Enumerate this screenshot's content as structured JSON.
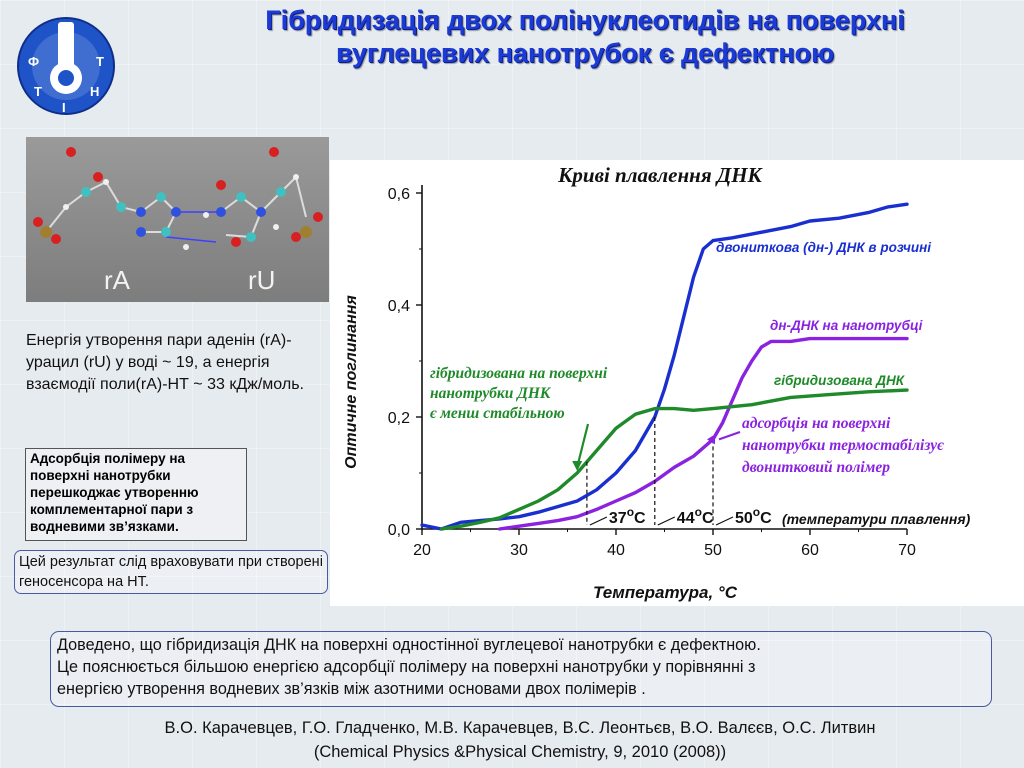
{
  "slide": {
    "title_line1": "Гібридизація двох полінуклеотидів на поверхні",
    "title_line2": "вуглецевих нанотрубок є дефектною",
    "logo_letters": [
      "Ф",
      "Т",
      "І",
      "Н",
      "Т"
    ],
    "molecule_labels": [
      "rA",
      "rU"
    ],
    "energy_text": "Енергія утворення пари аденін (rA)-урацил (rU)  у воді  ~ 19, а енергія взаємодії поли(rA)-НТ  ~ 33  кДж/моль.",
    "box1_text": " Адсорбція полімеру на поверхні нанотрубки перешкоджає утворенню комплементарної пари з водневими зв’язками.",
    "box2_text": "Цей результат слід враховувати при створені геносенсора на НТ.",
    "conclusion": [
      "Доведено, що гібридизація ДНК на поверхні одностінної вуглецевої нанотрубки є дефектною.",
      "Це пояснюється більшою енергією адсорбції полімеру на поверхні нанотрубки у  порівнянні з",
      "енергією утворення водневих зв’язків між азотними основами двох полімерів ."
    ],
    "authors_line1": "В.О. Карачевцев, Г.О. Гладченко, М.В. Карачевцев, В.С. Леонтьєв, В.О. Валєєв, О.С. Литвин",
    "authors_line2": "(Chemical Physics &Physical Chemistry, 9, 2010 (2008))"
  },
  "chart_data": {
    "type": "line",
    "title": "Криві плавлення ДНК",
    "xlabel": "Температура, °C",
    "ylabel": "Оптичне поглинання",
    "xlim": [
      20,
      70
    ],
    "ylim": [
      0.0,
      0.6
    ],
    "x_ticks": [
      "20",
      "30",
      "40",
      "50",
      "60",
      "70"
    ],
    "y_ticks": [
      "0,0",
      "0,2",
      "0,4",
      "0,6"
    ],
    "grid": false,
    "colors": {
      "blue": "#1a2fd0",
      "purple": "#8a22e0",
      "green": "#1f8a2a",
      "annotation": "#111111"
    },
    "series": [
      {
        "name": "двониткова (дн-) ДНК в розчині",
        "color": "#1a2fd0",
        "x": [
          20,
          22,
          24,
          26,
          28,
          30,
          32,
          34,
          36,
          38,
          40,
          42,
          44,
          45,
          46,
          47,
          48,
          49,
          50,
          52,
          55,
          58,
          60,
          63,
          66,
          68,
          70
        ],
        "y": [
          0.007,
          0.0,
          0.012,
          0.015,
          0.018,
          0.022,
          0.03,
          0.04,
          0.05,
          0.07,
          0.1,
          0.14,
          0.2,
          0.25,
          0.31,
          0.38,
          0.45,
          0.5,
          0.515,
          0.52,
          0.53,
          0.54,
          0.55,
          0.555,
          0.565,
          0.575,
          0.58
        ]
      },
      {
        "name": "дн-ДНК на нанотрубці",
        "color": "#8a22e0",
        "x": [
          28,
          30,
          32,
          34,
          36,
          38,
          40,
          42,
          44,
          46,
          48,
          50,
          51,
          52,
          53,
          54,
          55,
          56,
          58,
          60,
          63,
          66,
          70
        ],
        "y": [
          0.0,
          0.005,
          0.01,
          0.015,
          0.022,
          0.035,
          0.05,
          0.065,
          0.085,
          0.11,
          0.13,
          0.16,
          0.19,
          0.23,
          0.27,
          0.3,
          0.325,
          0.335,
          0.335,
          0.34,
          0.34,
          0.34,
          0.34
        ]
      },
      {
        "name": "гібридизована ДНК",
        "color": "#1f8a2a",
        "x": [
          22,
          24,
          26,
          28,
          30,
          32,
          34,
          36,
          38,
          40,
          42,
          44,
          46,
          48,
          50,
          54,
          58,
          62,
          66,
          70
        ],
        "y": [
          0.0,
          0.005,
          0.012,
          0.02,
          0.035,
          0.05,
          0.07,
          0.1,
          0.14,
          0.18,
          0.205,
          0.215,
          0.215,
          0.212,
          0.215,
          0.222,
          0.235,
          0.24,
          0.245,
          0.248
        ]
      }
    ],
    "melting_points": [
      {
        "x": 37,
        "label": "37",
        "unit": "C",
        "degree": "o"
      },
      {
        "x": 44,
        "label": "44",
        "unit": "C",
        "degree": "o"
      },
      {
        "x": 50,
        "label": "50",
        "unit": "C",
        "degree": "o"
      }
    ],
    "melting_note": "(температури плавлення)",
    "annotations": {
      "green_label": [
        "гібридизована на поверхні",
        "нанотрубки ДНК",
        "є менш стабільною"
      ],
      "purple_label": [
        "адсорбція на поверхні",
        "нанотрубки термостабілізує",
        "двонитковий полімер"
      ]
    }
  }
}
